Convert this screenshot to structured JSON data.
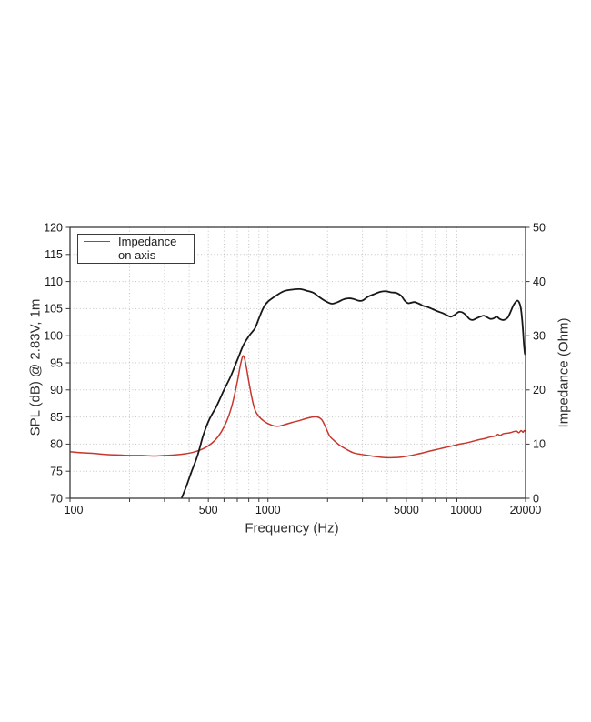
{
  "page": {
    "background": "#ffffff"
  },
  "chart_data": {
    "type": "line",
    "xlabel": "Frequency (Hz)",
    "ylabel_left": "SPL (dB) @ 2.83V, 1m",
    "ylabel_right": "Impedance (Ohm)",
    "x_scale": "log",
    "x_range": [
      100,
      20000
    ],
    "y_left_range": [
      70,
      120
    ],
    "y_right_range": [
      0,
      50
    ],
    "x_tick_labels": [
      100,
      500,
      1000,
      5000,
      10000,
      20000
    ],
    "x_gridlines": [
      200,
      300,
      400,
      500,
      600,
      700,
      800,
      900,
      1000,
      2000,
      3000,
      4000,
      5000,
      6000,
      7000,
      8000,
      9000,
      10000
    ],
    "x_minor_ticks": [
      100,
      200,
      300,
      400,
      500,
      600,
      700,
      800,
      900,
      1000,
      2000,
      3000,
      4000,
      5000,
      6000,
      7000,
      8000,
      9000,
      10000,
      20000
    ],
    "y_left_ticks": [
      70,
      75,
      80,
      85,
      90,
      95,
      100,
      105,
      110,
      115,
      120
    ],
    "y_left_gridlines": [
      75,
      80,
      85,
      90,
      95,
      100,
      105,
      110,
      115
    ],
    "y_right_ticks": [
      0,
      10,
      20,
      30,
      40,
      50
    ],
    "grid": "dotted",
    "legend_position": "top-left",
    "border_color": "#3a3a3a",
    "grid_color": "#c3c3c3",
    "series": [
      {
        "name": "Impedance",
        "color": "#c8372d",
        "axis": "right",
        "unit": "Ohm",
        "points": [
          [
            100,
            8.6
          ],
          [
            115,
            8.4
          ],
          [
            130,
            8.3
          ],
          [
            150,
            8.1
          ],
          [
            170,
            8.0
          ],
          [
            200,
            7.9
          ],
          [
            230,
            7.9
          ],
          [
            270,
            7.8
          ],
          [
            300,
            7.9
          ],
          [
            340,
            8.0
          ],
          [
            380,
            8.2
          ],
          [
            420,
            8.5
          ],
          [
            460,
            9.0
          ],
          [
            500,
            9.7
          ],
          [
            540,
            10.7
          ],
          [
            580,
            12.2
          ],
          [
            620,
            14.3
          ],
          [
            660,
            17.3
          ],
          [
            700,
            21.5
          ],
          [
            725,
            24.5
          ],
          [
            745,
            26.2
          ],
          [
            760,
            25.9
          ],
          [
            780,
            24.0
          ],
          [
            800,
            21.6
          ],
          [
            830,
            18.5
          ],
          [
            860,
            16.3
          ],
          [
            900,
            15.1
          ],
          [
            950,
            14.3
          ],
          [
            1000,
            13.8
          ],
          [
            1060,
            13.4
          ],
          [
            1130,
            13.3
          ],
          [
            1220,
            13.6
          ],
          [
            1320,
            14.0
          ],
          [
            1430,
            14.3
          ],
          [
            1550,
            14.7
          ],
          [
            1680,
            15.0
          ],
          [
            1780,
            15.0
          ],
          [
            1870,
            14.5
          ],
          [
            1950,
            13.2
          ],
          [
            2050,
            11.5
          ],
          [
            2150,
            10.7
          ],
          [
            2300,
            9.8
          ],
          [
            2500,
            9.0
          ],
          [
            2700,
            8.4
          ],
          [
            2950,
            8.1
          ],
          [
            3200,
            7.9
          ],
          [
            3500,
            7.7
          ],
          [
            3900,
            7.5
          ],
          [
            4300,
            7.5
          ],
          [
            4700,
            7.6
          ],
          [
            5100,
            7.8
          ],
          [
            5600,
            8.1
          ],
          [
            6100,
            8.4
          ],
          [
            6700,
            8.8
          ],
          [
            7300,
            9.1
          ],
          [
            7900,
            9.4
          ],
          [
            8600,
            9.7
          ],
          [
            9300,
            10.0
          ],
          [
            10000,
            10.2
          ],
          [
            10800,
            10.5
          ],
          [
            11600,
            10.8
          ],
          [
            12400,
            11.0
          ],
          [
            13200,
            11.3
          ],
          [
            14000,
            11.5
          ],
          [
            14500,
            11.8
          ],
          [
            14900,
            11.6
          ],
          [
            15400,
            11.9
          ],
          [
            16000,
            12.0
          ],
          [
            16700,
            12.1
          ],
          [
            17400,
            12.3
          ],
          [
            18000,
            12.4
          ],
          [
            18500,
            12.1
          ],
          [
            19000,
            12.5
          ],
          [
            19400,
            12.2
          ],
          [
            19700,
            12.5
          ],
          [
            20000,
            12.3
          ]
        ]
      },
      {
        "name": "on axis",
        "color": "#181818",
        "axis": "left",
        "unit": "dB",
        "points": [
          [
            366,
            70
          ],
          [
            385,
            72
          ],
          [
            410,
            74.8
          ],
          [
            440,
            77.8
          ],
          [
            470,
            81.5
          ],
          [
            505,
            84.5
          ],
          [
            550,
            87
          ],
          [
            600,
            90
          ],
          [
            650,
            92.6
          ],
          [
            700,
            95.5
          ],
          [
            750,
            98.2
          ],
          [
            800,
            99.9
          ],
          [
            860,
            101.4
          ],
          [
            900,
            103.2
          ],
          [
            950,
            105.2
          ],
          [
            1000,
            106.3
          ],
          [
            1100,
            107.4
          ],
          [
            1200,
            108.2
          ],
          [
            1320,
            108.5
          ],
          [
            1450,
            108.6
          ],
          [
            1570,
            108.3
          ],
          [
            1700,
            107.9
          ],
          [
            1820,
            107.1
          ],
          [
            1950,
            106.4
          ],
          [
            2100,
            105.9
          ],
          [
            2250,
            106.2
          ],
          [
            2400,
            106.7
          ],
          [
            2550,
            106.9
          ],
          [
            2700,
            106.8
          ],
          [
            2850,
            106.5
          ],
          [
            3000,
            106.5
          ],
          [
            3200,
            107.2
          ],
          [
            3450,
            107.7
          ],
          [
            3700,
            108.1
          ],
          [
            3950,
            108.2
          ],
          [
            4200,
            108.0
          ],
          [
            4450,
            107.9
          ],
          [
            4700,
            107.4
          ],
          [
            4900,
            106.5
          ],
          [
            5100,
            106.0
          ],
          [
            5300,
            106.1
          ],
          [
            5500,
            106.2
          ],
          [
            5800,
            105.9
          ],
          [
            6100,
            105.5
          ],
          [
            6400,
            105.3
          ],
          [
            6800,
            104.9
          ],
          [
            7200,
            104.5
          ],
          [
            7600,
            104.2
          ],
          [
            8000,
            103.8
          ],
          [
            8400,
            103.5
          ],
          [
            8800,
            103.9
          ],
          [
            9200,
            104.4
          ],
          [
            9600,
            104.3
          ],
          [
            10000,
            103.8
          ],
          [
            10400,
            103.1
          ],
          [
            10800,
            102.9
          ],
          [
            11300,
            103.2
          ],
          [
            11800,
            103.5
          ],
          [
            12300,
            103.7
          ],
          [
            12800,
            103.4
          ],
          [
            13300,
            103.1
          ],
          [
            13800,
            103.2
          ],
          [
            14300,
            103.5
          ],
          [
            14800,
            103.1
          ],
          [
            15300,
            102.9
          ],
          [
            15800,
            103.0
          ],
          [
            16300,
            103.4
          ],
          [
            16800,
            104.4
          ],
          [
            17300,
            105.5
          ],
          [
            17800,
            106.2
          ],
          [
            18200,
            106.5
          ],
          [
            18600,
            106.1
          ],
          [
            18900,
            105.2
          ],
          [
            19200,
            103.2
          ],
          [
            19450,
            100.5
          ],
          [
            19650,
            98.2
          ],
          [
            19800,
            97.0
          ],
          [
            19900,
            96.6
          ],
          [
            20000,
            96.9
          ]
        ]
      }
    ]
  }
}
